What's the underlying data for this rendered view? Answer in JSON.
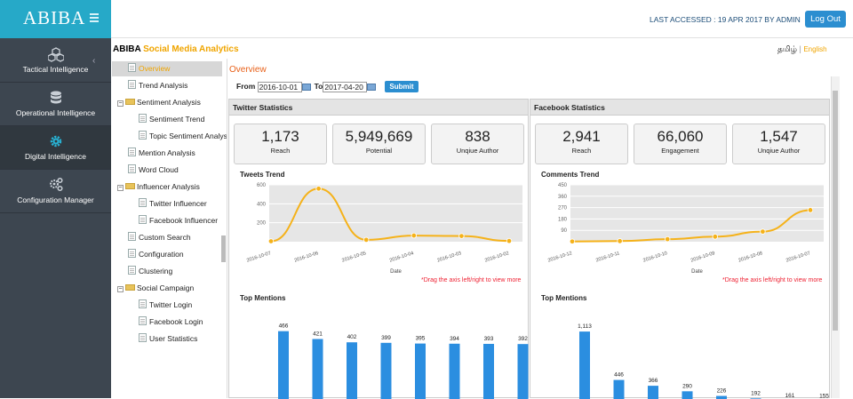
{
  "sidebar": {
    "logo": "ABIBA",
    "items": [
      {
        "label": "Tactical Intelligence",
        "icon": "cubes-icon"
      },
      {
        "label": "Operational Intelligence",
        "icon": "database-icon"
      },
      {
        "label": "Digital Intelligence",
        "icon": "gear-icon"
      },
      {
        "label": "Configuration Manager",
        "icon": "gears-icon"
      }
    ],
    "collapse": "‹"
  },
  "header": {
    "last_accessed": "LAST ACCESSED : 19 APR 2017 BY ADMIN",
    "logout": "Log Out"
  },
  "brand": {
    "name": "ABIBA",
    "sub": "Social Media Analytics"
  },
  "lang": {
    "tamil": "தமிழ்",
    "sep": " | ",
    "english": "English"
  },
  "tree": {
    "overview": "Overview",
    "trend": "Trend Analysis",
    "sentiment": "Sentiment Analysis",
    "sentiment_trend": "Sentiment Trend",
    "topic_sentiment": "Topic Sentiment Analysis",
    "mention": "Mention Analysis",
    "word_cloud": "Word Cloud",
    "influencer": "Influencer Analysis",
    "twitter_influencer": "Twitter Influencer",
    "facebook_influencer": "Facebook Influencer",
    "custom_search": "Custom Search",
    "configuration": "Configuration",
    "clustering": "Clustering",
    "social_campaign": "Social Campaign",
    "twitter_login": "Twitter Login",
    "facebook_login": "Facebook Login",
    "user_statistics": "User Statistics"
  },
  "content": {
    "title": "Overview",
    "from_label": "From",
    "from_value": "2016-10-01",
    "to_label": "To",
    "to_value": "2017-04-20",
    "submit": "Submit"
  },
  "twitter": {
    "title": "Twitter Statistics",
    "stats": [
      {
        "value": "1,173",
        "label": "Reach"
      },
      {
        "value": "5,949,669",
        "label": "Potential"
      },
      {
        "value": "838",
        "label": "Unqiue Author"
      }
    ],
    "trend_title": "Tweets Trend",
    "mentions_title": "Top Mentions",
    "drag_note": "*Drag the axis left/right to view more"
  },
  "facebook": {
    "title": "Facebook Statistics",
    "stats": [
      {
        "value": "2,941",
        "label": "Reach"
      },
      {
        "value": "66,060",
        "label": "Engagement"
      },
      {
        "value": "1,547",
        "label": "Unqiue Author"
      }
    ],
    "trend_title": "Comments Trend",
    "mentions_title": "Top Mentions",
    "drag_note": "*Drag the axis left/right to view more"
  },
  "chart_data": [
    {
      "type": "line",
      "title": "Tweets Trend",
      "xlabel": "Date",
      "categories": [
        "2016-10-07",
        "2016-10-06",
        "2016-10-05",
        "2016-10-04",
        "2016-10-03",
        "2016-10-02"
      ],
      "values": [
        5,
        560,
        20,
        65,
        60,
        8
      ],
      "yticks": [
        200,
        400,
        600
      ],
      "ylim": [
        0,
        600
      ],
      "color": "#f5b21a"
    },
    {
      "type": "bar",
      "title": "Top Mentions",
      "values": [
        466,
        421,
        402,
        399,
        395,
        394,
        393,
        392
      ],
      "labels": [
        "466",
        "421",
        "402",
        "399",
        "395",
        "394",
        "393",
        "392"
      ],
      "ylim": [
        0,
        500
      ],
      "color": "#2b8ee0"
    },
    {
      "type": "line",
      "title": "Comments Trend",
      "xlabel": "Date",
      "categories": [
        "2016-10-12",
        "2016-10-11",
        "2016-10-10",
        "2016-10-09",
        "2016-10-08",
        "2016-10-07"
      ],
      "values": [
        2,
        5,
        20,
        40,
        80,
        250
      ],
      "yticks": [
        90,
        180,
        270,
        360,
        450
      ],
      "ylim": [
        0,
        450
      ],
      "color": "#f5b21a"
    },
    {
      "type": "bar",
      "title": "Top Mentions",
      "values": [
        1113,
        446,
        366,
        290,
        226,
        192,
        161,
        155
      ],
      "labels": [
        "1,113",
        "446",
        "366",
        "290",
        "226",
        "192",
        "161",
        "155"
      ],
      "ylim": [
        0,
        1200
      ],
      "color": "#2b8ee0"
    }
  ]
}
